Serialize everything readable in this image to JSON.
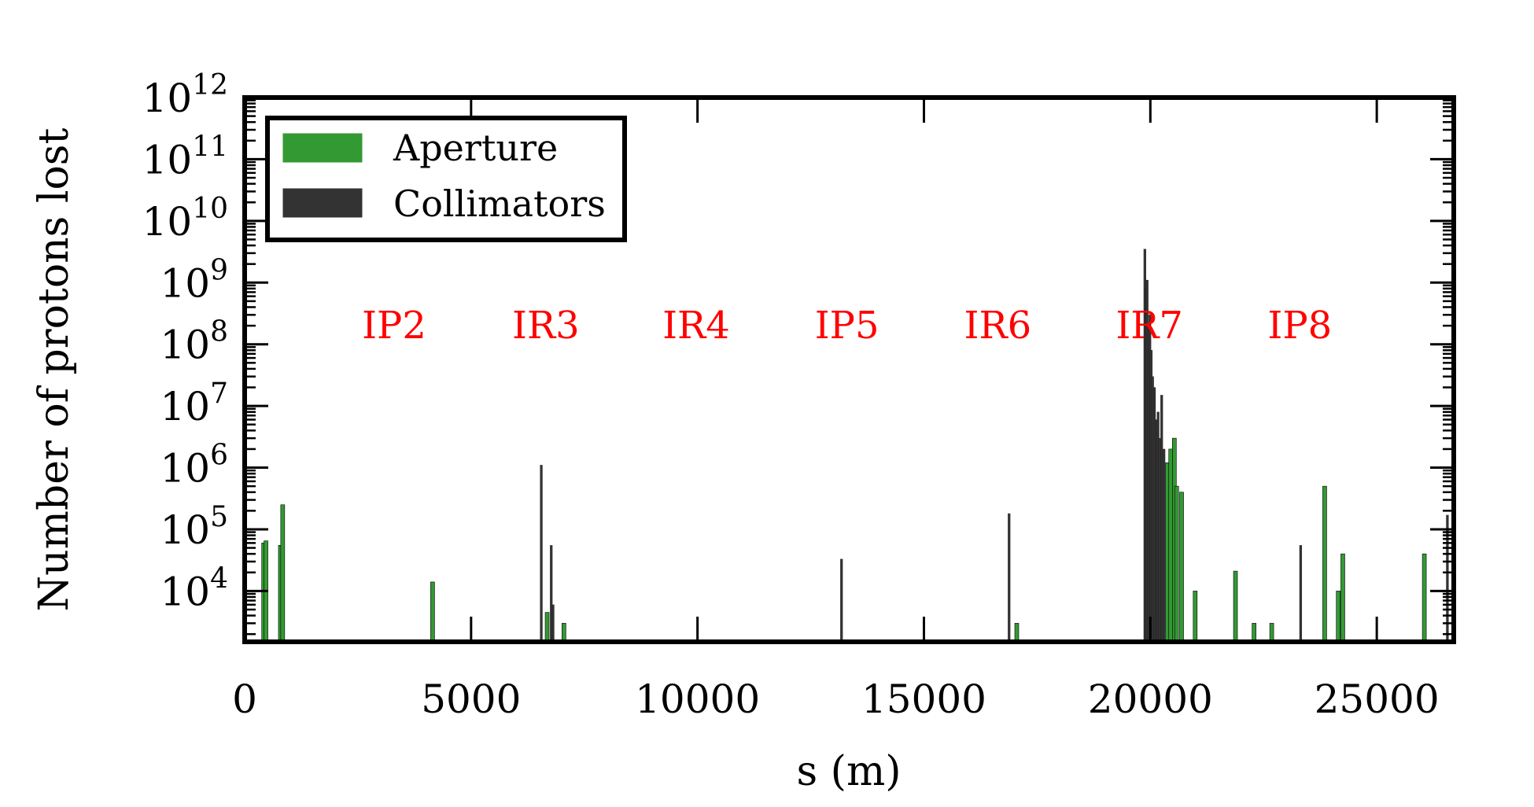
{
  "chart_data": {
    "type": "bar",
    "xlabel": "s (m)",
    "ylabel": "Number of protons lost",
    "xlim": [
      0,
      26700
    ],
    "ylim": [
      1500,
      1000000000000
    ],
    "yscale": "log",
    "grid": false,
    "legend_position": "top-left",
    "x_ticks": [
      {
        "value": 0,
        "label": "0"
      },
      {
        "value": 5000,
        "label": "5000"
      },
      {
        "value": 10000,
        "label": "10000"
      },
      {
        "value": 15000,
        "label": "15000"
      },
      {
        "value": 20000,
        "label": "20000"
      },
      {
        "value": 25000,
        "label": "25000"
      }
    ],
    "y_ticks": [
      {
        "value": 10000,
        "base": "10",
        "exp": "4"
      },
      {
        "value": 100000,
        "base": "10",
        "exp": "5"
      },
      {
        "value": 1000000,
        "base": "10",
        "exp": "6"
      },
      {
        "value": 10000000,
        "base": "10",
        "exp": "7"
      },
      {
        "value": 100000000,
        "base": "10",
        "exp": "8"
      },
      {
        "value": 1000000000,
        "base": "10",
        "exp": "9"
      },
      {
        "value": 10000000000,
        "base": "10",
        "exp": "10"
      },
      {
        "value": 100000000000,
        "base": "10",
        "exp": "11"
      },
      {
        "value": 1000000000000,
        "base": "10",
        "exp": "12"
      }
    ],
    "ir_labels": [
      {
        "label": "IP2",
        "s": 3300
      },
      {
        "label": "IR3",
        "s": 6650
      },
      {
        "label": "IR4",
        "s": 9970
      },
      {
        "label": "IP5",
        "s": 13300
      },
      {
        "label": "IR6",
        "s": 16630
      },
      {
        "label": "IR7",
        "s": 19980
      },
      {
        "label": "IP8",
        "s": 23300
      }
    ],
    "ir_label_value": 200000000,
    "series": [
      {
        "name": "Aperture",
        "color": "#339933",
        "points": [
          {
            "x": 420,
            "y": 60000
          },
          {
            "x": 470,
            "y": 65000
          },
          {
            "x": 790,
            "y": 55000
          },
          {
            "x": 840,
            "y": 250000
          },
          {
            "x": 4150,
            "y": 14000
          },
          {
            "x": 6680,
            "y": 4500
          },
          {
            "x": 7050,
            "y": 3000
          },
          {
            "x": 17050,
            "y": 3000
          },
          {
            "x": 20200,
            "y": 3000
          },
          {
            "x": 20380,
            "y": 1200000
          },
          {
            "x": 20450,
            "y": 2000000
          },
          {
            "x": 20530,
            "y": 3000000
          },
          {
            "x": 20580,
            "y": 500000
          },
          {
            "x": 20690,
            "y": 400000
          },
          {
            "x": 20990,
            "y": 10000
          },
          {
            "x": 21880,
            "y": 21000
          },
          {
            "x": 22290,
            "y": 3000
          },
          {
            "x": 22680,
            "y": 3000
          },
          {
            "x": 23850,
            "y": 500000
          },
          {
            "x": 24150,
            "y": 10000
          },
          {
            "x": 24250,
            "y": 40000
          },
          {
            "x": 26050,
            "y": 40000
          }
        ]
      },
      {
        "name": "Collimators",
        "color": "#333333",
        "points": [
          {
            "x": 6550,
            "y": 1100000
          },
          {
            "x": 6770,
            "y": 55000
          },
          {
            "x": 6810,
            "y": 6000
          },
          {
            "x": 13180,
            "y": 33000
          },
          {
            "x": 16880,
            "y": 180000
          },
          {
            "x": 19880,
            "y": 3500000000
          },
          {
            "x": 19900,
            "y": 800000000
          },
          {
            "x": 19930,
            "y": 1100000000
          },
          {
            "x": 19960,
            "y": 200000000
          },
          {
            "x": 19990,
            "y": 300000000
          },
          {
            "x": 20020,
            "y": 80000000
          },
          {
            "x": 20050,
            "y": 30000000
          },
          {
            "x": 20090,
            "y": 20000000
          },
          {
            "x": 20130,
            "y": 6000000
          },
          {
            "x": 20170,
            "y": 8000000
          },
          {
            "x": 20210,
            "y": 3000000
          },
          {
            "x": 20250,
            "y": 15000000
          },
          {
            "x": 20300,
            "y": 2000000
          },
          {
            "x": 23320,
            "y": 55000
          },
          {
            "x": 26560,
            "y": 170000
          }
        ]
      }
    ]
  }
}
